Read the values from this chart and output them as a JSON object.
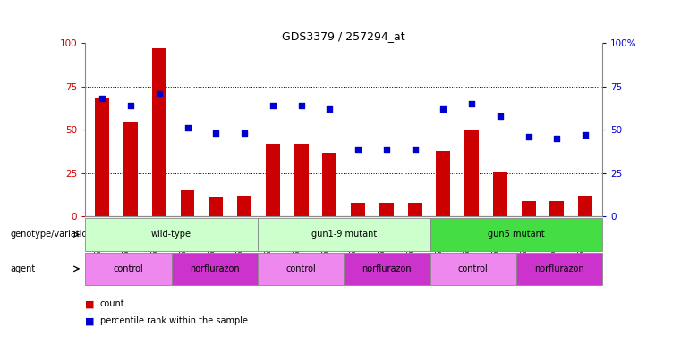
{
  "title": "GDS3379 / 257294_at",
  "samples": [
    "GSM323075",
    "GSM323076",
    "GSM323077",
    "GSM323078",
    "GSM323079",
    "GSM323080",
    "GSM323081",
    "GSM323082",
    "GSM323083",
    "GSM323084",
    "GSM323085",
    "GSM323086",
    "GSM323087",
    "GSM323088",
    "GSM323089",
    "GSM323090",
    "GSM323091",
    "GSM323092"
  ],
  "counts": [
    68,
    55,
    97,
    15,
    11,
    12,
    42,
    42,
    37,
    8,
    8,
    8,
    38,
    50,
    26,
    9,
    9,
    12
  ],
  "percentiles": [
    68,
    64,
    71,
    51,
    48,
    48,
    64,
    64,
    62,
    39,
    39,
    39,
    62,
    65,
    58,
    46,
    45,
    47
  ],
  "bar_color": "#cc0000",
  "dot_color": "#0000cc",
  "bar_width": 0.5,
  "ylim": [
    0,
    100
  ],
  "yticks": [
    0,
    25,
    50,
    75,
    100
  ],
  "grid_lines": [
    25,
    50,
    75
  ],
  "genotype_groups": [
    {
      "label": "wild-type",
      "start": 0,
      "end": 5,
      "color": "#ccffcc"
    },
    {
      "label": "gun1-9 mutant",
      "start": 6,
      "end": 11,
      "color": "#ccffcc"
    },
    {
      "label": "gun5 mutant",
      "start": 12,
      "end": 17,
      "color": "#44dd44"
    }
  ],
  "agent_groups": [
    {
      "label": "control",
      "start": 0,
      "end": 2,
      "color": "#ee88ee"
    },
    {
      "label": "norflurazon",
      "start": 3,
      "end": 5,
      "color": "#cc33cc"
    },
    {
      "label": "control",
      "start": 6,
      "end": 8,
      "color": "#ee88ee"
    },
    {
      "label": "norflurazon",
      "start": 9,
      "end": 11,
      "color": "#cc33cc"
    },
    {
      "label": "control",
      "start": 12,
      "end": 14,
      "color": "#ee88ee"
    },
    {
      "label": "norflurazon",
      "start": 15,
      "end": 17,
      "color": "#cc33cc"
    }
  ],
  "xlabel_rotation": 90,
  "legend_red_label": "count",
  "legend_blue_label": "percentile rank within the sample",
  "genotype_label": "genotype/variation",
  "agent_label": "agent",
  "left_ytick_color": "#cc0000",
  "right_ytick_color": "#0000cc",
  "right_ytick_labels": [
    "0",
    "25",
    "50",
    "75",
    "100%"
  ]
}
